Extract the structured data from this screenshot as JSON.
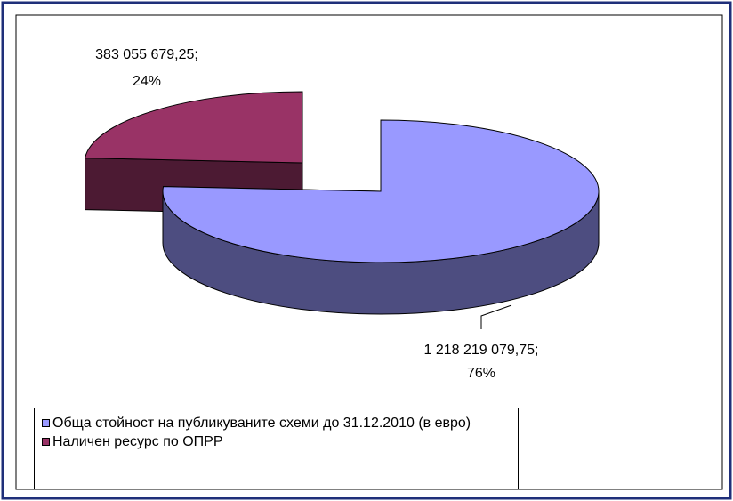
{
  "chart_data": {
    "type": "pie3d",
    "categories": [
      "Обща стойност на публикуваните схеми до 31.12.2010 (в евро)",
      "Наличен ресурс по ОПРР"
    ],
    "values": [
      1218219079.75,
      383055679.25
    ],
    "value_labels": [
      "1 218 219 079,75;",
      "383 055 679,25;"
    ],
    "percent_labels": [
      "76%",
      "24%"
    ],
    "colors": [
      "#9999ff",
      "#993366"
    ],
    "side_colors": [
      "#4d4d80",
      "#4c1a33"
    ],
    "legend": "bottom-left"
  }
}
